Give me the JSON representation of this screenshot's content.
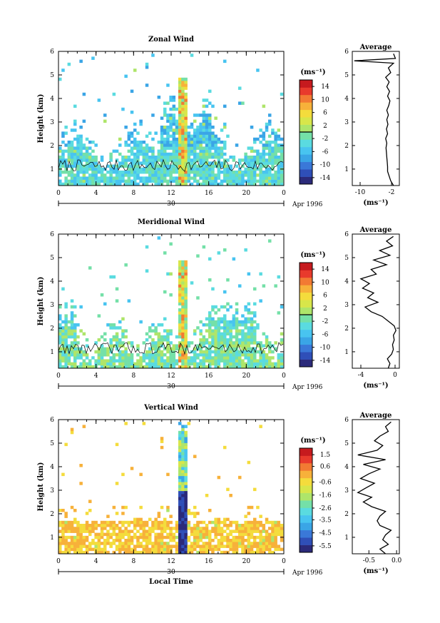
{
  "chart_data": [
    {
      "type": "heatmap",
      "title": "Zonal Wind",
      "xlabel": "",
      "ylabel": "Height (km)",
      "xlim": [
        0,
        24
      ],
      "ylim": [
        0.3,
        6
      ],
      "x_ticks": [
        "0",
        "4",
        "8",
        "12",
        "16",
        "20",
        "0"
      ],
      "y_ticks": [
        "1",
        "2",
        "3",
        "4",
        "5",
        "6"
      ],
      "date_day": "30",
      "date_label": "Apr 1996",
      "colorbar": {
        "unit": "(ms⁻¹)",
        "labels": [
          "14",
          "10",
          "6",
          "2",
          "-2",
          "-6",
          "-10",
          "-14"
        ],
        "range": [
          -16,
          16
        ]
      },
      "average": {
        "title": "Average",
        "xlabel": "(ms⁻¹)",
        "x_ticks": [
          "-10",
          "-2"
        ],
        "xlim": [
          -12,
          0
        ],
        "heights": [
          0.3,
          0.5,
          0.7,
          0.9,
          1.1,
          1.3,
          1.5,
          1.7,
          1.9,
          2.1,
          2.3,
          2.5,
          2.7,
          2.9,
          3.1,
          3.3,
          3.5,
          3.7,
          3.9,
          4.1,
          4.3,
          4.5,
          4.7,
          4.9,
          5.1,
          5.3,
          5.5,
          5.6,
          5.7,
          5.9
        ],
        "values": [
          -1.5,
          -2.2,
          -2.6,
          -3.0,
          -3.0,
          -3.1,
          -3.2,
          -3.3,
          -3.4,
          -3.2,
          -3.5,
          -3.0,
          -3.3,
          -2.9,
          -3.2,
          -2.8,
          -3.2,
          -2.7,
          -2.4,
          -3.0,
          -2.5,
          -3.2,
          -2.6,
          -3.5,
          -2.2,
          -2.8,
          -1.5,
          -11.5,
          -1.0,
          -1.5
        ]
      }
    },
    {
      "type": "heatmap",
      "title": "Meridional Wind",
      "xlabel": "",
      "ylabel": "Height (km)",
      "xlim": [
        0,
        24
      ],
      "ylim": [
        0.3,
        6
      ],
      "x_ticks": [
        "0",
        "4",
        "8",
        "12",
        "16",
        "20",
        "0"
      ],
      "y_ticks": [
        "1",
        "2",
        "3",
        "4",
        "5",
        "6"
      ],
      "date_day": "30",
      "date_label": "Apr 1996",
      "colorbar": {
        "unit": "(ms⁻¹)",
        "labels": [
          "14",
          "10",
          "6",
          "2",
          "-2",
          "-6",
          "-10",
          "-14"
        ],
        "range": [
          -16,
          16
        ]
      },
      "average": {
        "title": "Average",
        "xlabel": "(ms⁻¹)",
        "x_ticks": [
          "-4",
          "0"
        ],
        "xlim": [
          -5,
          0.5
        ],
        "heights": [
          0.3,
          0.5,
          0.7,
          0.9,
          1.1,
          1.3,
          1.5,
          1.7,
          1.9,
          2.1,
          2.3,
          2.5,
          2.7,
          2.9,
          3.1,
          3.3,
          3.5,
          3.7,
          3.9,
          4.1,
          4.3,
          4.5,
          4.7,
          4.9,
          5.1,
          5.3,
          5.5,
          5.7,
          5.9
        ],
        "values": [
          -0.8,
          -0.6,
          -0.9,
          -0.4,
          -0.2,
          -0.3,
          -0.1,
          -0.2,
          0.1,
          -0.1,
          -0.8,
          -1.5,
          -2.8,
          -3.5,
          -2.0,
          -3.2,
          -2.5,
          -3.8,
          -3.0,
          -4.0,
          -2.2,
          -2.8,
          -1.0,
          -2.5,
          -0.6,
          -1.8,
          -0.3,
          -1.0,
          -0.2
        ]
      }
    },
    {
      "type": "heatmap",
      "title": "Vertical Wind",
      "xlabel": "Local Time",
      "ylabel": "Height (km)",
      "xlim": [
        0,
        24
      ],
      "ylim": [
        0.3,
        6
      ],
      "x_ticks": [
        "0",
        "4",
        "8",
        "12",
        "16",
        "20",
        "0"
      ],
      "y_ticks": [
        "1",
        "2",
        "3",
        "4",
        "5",
        "6"
      ],
      "date_day": "30",
      "date_label": "Apr 1996",
      "colorbar": {
        "unit": "(ms⁻¹)",
        "labels": [
          "1.5",
          "0.6",
          "-0.6",
          "-1.6",
          "-2.6",
          "-3.5",
          "-4.5",
          "-5.5"
        ],
        "range": [
          -6,
          2
        ]
      },
      "average": {
        "title": "Average",
        "xlabel": "(ms⁻¹)",
        "x_ticks": [
          "-0.5",
          "0.0"
        ],
        "xlim": [
          -0.8,
          0.05
        ],
        "heights": [
          0.3,
          0.5,
          0.7,
          0.9,
          1.1,
          1.3,
          1.5,
          1.7,
          1.9,
          2.1,
          2.3,
          2.5,
          2.7,
          2.9,
          3.1,
          3.3,
          3.5,
          3.7,
          3.9,
          4.1,
          4.3,
          4.5,
          4.7,
          4.9,
          5.1,
          5.3,
          5.5,
          5.7,
          5.9
        ],
        "values": [
          -0.2,
          -0.3,
          -0.15,
          -0.25,
          -0.2,
          -0.1,
          -0.3,
          -0.35,
          -0.3,
          -0.2,
          -0.45,
          -0.6,
          -0.45,
          -0.7,
          -0.55,
          -0.4,
          -0.65,
          -0.5,
          -0.3,
          -0.6,
          -0.2,
          -0.7,
          -0.35,
          -0.25,
          -0.4,
          -0.3,
          -0.15,
          -0.2,
          -0.1
        ]
      }
    }
  ],
  "colors": {
    "scale": [
      "#2b2a7a",
      "#2f4fb8",
      "#3a78d8",
      "#3aa5e6",
      "#48c4f0",
      "#5adbe0",
      "#74e0a8",
      "#aee56a",
      "#d8e64a",
      "#f4dc3c",
      "#f7b13a",
      "#f27a33",
      "#e83a2c",
      "#c61a1e"
    ],
    "zero_line": "#000000"
  }
}
